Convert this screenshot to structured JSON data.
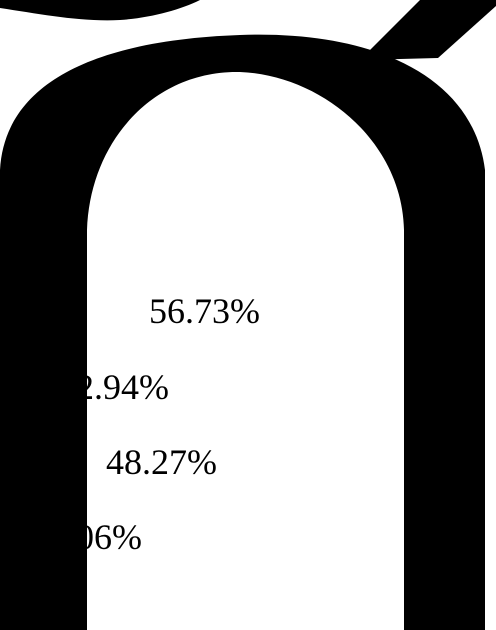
{
  "colors": {
    "background": "#ffffff",
    "glyph": "#000000",
    "text": "#000000"
  },
  "shapes": {
    "main_glyph": "large-black-thai-character-arch",
    "top_left_mark": "black-arc-fragment",
    "top_right_mark": "black-slanted-tone-mark"
  },
  "labels": [
    {
      "text": "56.73%"
    },
    {
      "text": "2.94%"
    },
    {
      "text": "48.27%"
    },
    {
      "text": "06%"
    }
  ]
}
